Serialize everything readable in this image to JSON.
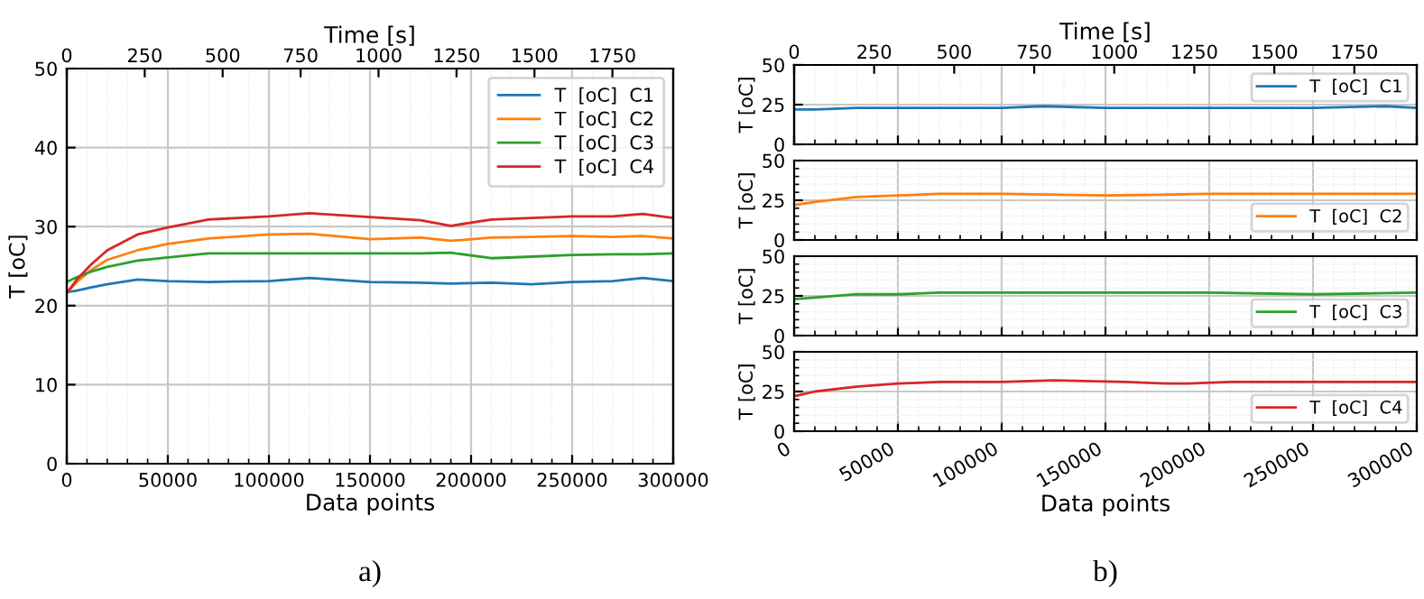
{
  "chart_data": [
    {
      "type": "line",
      "xlabel": "Data points",
      "ylabel": "T [oC]",
      "x2label": "Time [s]",
      "xlim": [
        0,
        300000
      ],
      "xticks": [
        0,
        50000,
        100000,
        150000,
        200000,
        250000,
        300000
      ],
      "ylim": [
        0,
        50
      ],
      "yticks": [
        0,
        10,
        20,
        30,
        40,
        50
      ],
      "x2lim": [
        0,
        1945
      ],
      "x2ticks": [
        0,
        250,
        500,
        750,
        1000,
        1250,
        1500,
        1750
      ],
      "grid": true,
      "legend": "top right",
      "annotations": [
        "a)"
      ],
      "x": [
        0,
        5000,
        12000,
        20000,
        35000,
        50000,
        70000,
        100000,
        120000,
        150000,
        175000,
        190000,
        210000,
        230000,
        250000,
        270000,
        285000,
        300000
      ],
      "series": [
        {
          "name": "T  [oC]  C1",
          "color": "#1f77b4",
          "values": [
            21.7,
            21.9,
            22.3,
            22.7,
            23.3,
            23.1,
            23.0,
            23.1,
            23.5,
            23.0,
            22.9,
            22.8,
            22.9,
            22.7,
            23.0,
            23.1,
            23.5,
            23.1
          ]
        },
        {
          "name": "T  [oC]  C2",
          "color": "#ff7f0e",
          "values": [
            21.6,
            23.0,
            24.5,
            25.8,
            27.0,
            27.8,
            28.5,
            29.0,
            29.1,
            28.4,
            28.6,
            28.2,
            28.6,
            28.7,
            28.8,
            28.7,
            28.8,
            28.5
          ]
        },
        {
          "name": "T  [oC]  C3",
          "color": "#2ca02c",
          "values": [
            23.0,
            23.6,
            24.3,
            24.9,
            25.7,
            26.1,
            26.6,
            26.6,
            26.6,
            26.6,
            26.6,
            26.7,
            26.0,
            26.2,
            26.4,
            26.5,
            26.5,
            26.6
          ]
        },
        {
          "name": "T  [oC]  C4",
          "color": "#d62728",
          "values": [
            21.6,
            23.3,
            25.2,
            27.0,
            29.0,
            29.9,
            30.9,
            31.3,
            31.7,
            31.2,
            30.8,
            30.1,
            30.9,
            31.1,
            31.3,
            31.3,
            31.6,
            31.1
          ]
        }
      ]
    },
    {
      "type": "line",
      "ylabel": "T [oC]",
      "x2label": "Time [s]",
      "xlim": [
        0,
        300000
      ],
      "xticks": [
        0,
        50000,
        100000,
        150000,
        200000,
        250000,
        300000
      ],
      "ylim": [
        0,
        50
      ],
      "yticks": [
        0,
        25,
        50
      ],
      "x2lim": [
        0,
        1945
      ],
      "x2ticks": [
        0,
        250,
        500,
        750,
        1000,
        1250,
        1500,
        1750
      ],
      "grid": true,
      "legend": "top right",
      "tick_labels": "y",
      "x": [
        0,
        10000,
        30000,
        50000,
        100000,
        120000,
        150000,
        200000,
        250000,
        285000,
        300000
      ],
      "series": [
        {
          "name": "T  [oC]  C1",
          "color": "#1f77b4",
          "values": [
            22,
            22,
            23,
            23,
            23,
            24,
            23,
            23,
            23,
            24,
            23
          ]
        }
      ]
    },
    {
      "type": "line",
      "ylabel": "T [oC]",
      "xlim": [
        0,
        300000
      ],
      "xticks": [
        0,
        50000,
        100000,
        150000,
        200000,
        250000,
        300000
      ],
      "ylim": [
        0,
        50
      ],
      "yticks": [
        0,
        25,
        50
      ],
      "grid": true,
      "legend": "bottom right",
      "tick_labels": "y",
      "x": [
        0,
        10000,
        30000,
        50000,
        70000,
        100000,
        150000,
        200000,
        250000,
        300000
      ],
      "series": [
        {
          "name": "T  [oC]  C2",
          "color": "#ff7f0e",
          "values": [
            22,
            24,
            27,
            28,
            29,
            29,
            28,
            29,
            29,
            29
          ]
        }
      ]
    },
    {
      "type": "line",
      "ylabel": "T [oC]",
      "xlim": [
        0,
        300000
      ],
      "xticks": [
        0,
        50000,
        100000,
        150000,
        200000,
        250000,
        300000
      ],
      "ylim": [
        0,
        50
      ],
      "yticks": [
        0,
        25,
        50
      ],
      "grid": true,
      "legend": "bottom right",
      "tick_labels": "y",
      "x": [
        0,
        10000,
        30000,
        50000,
        70000,
        100000,
        150000,
        200000,
        250000,
        300000
      ],
      "series": [
        {
          "name": "T  [oC]  C3",
          "color": "#2ca02c",
          "values": [
            23,
            24,
            26,
            26,
            27,
            27,
            27,
            27,
            26,
            27
          ]
        }
      ]
    },
    {
      "type": "line",
      "xlabel": "Data points",
      "ylabel": "T [oC]",
      "xlim": [
        0,
        300000
      ],
      "xticks": [
        0,
        50000,
        100000,
        150000,
        200000,
        250000,
        300000
      ],
      "ylim": [
        0,
        50
      ],
      "yticks": [
        0,
        25,
        50
      ],
      "grid": true,
      "legend": "bottom right",
      "annotations": [
        "b)"
      ],
      "x": [
        0,
        10000,
        30000,
        50000,
        70000,
        100000,
        125000,
        160000,
        180000,
        190000,
        210000,
        250000,
        300000
      ],
      "series": [
        {
          "name": "T  [oC]  C4",
          "color": "#d62728",
          "values": [
            22,
            25,
            28,
            30,
            31,
            31,
            32,
            31,
            30,
            30,
            31,
            31,
            31
          ]
        }
      ]
    }
  ]
}
